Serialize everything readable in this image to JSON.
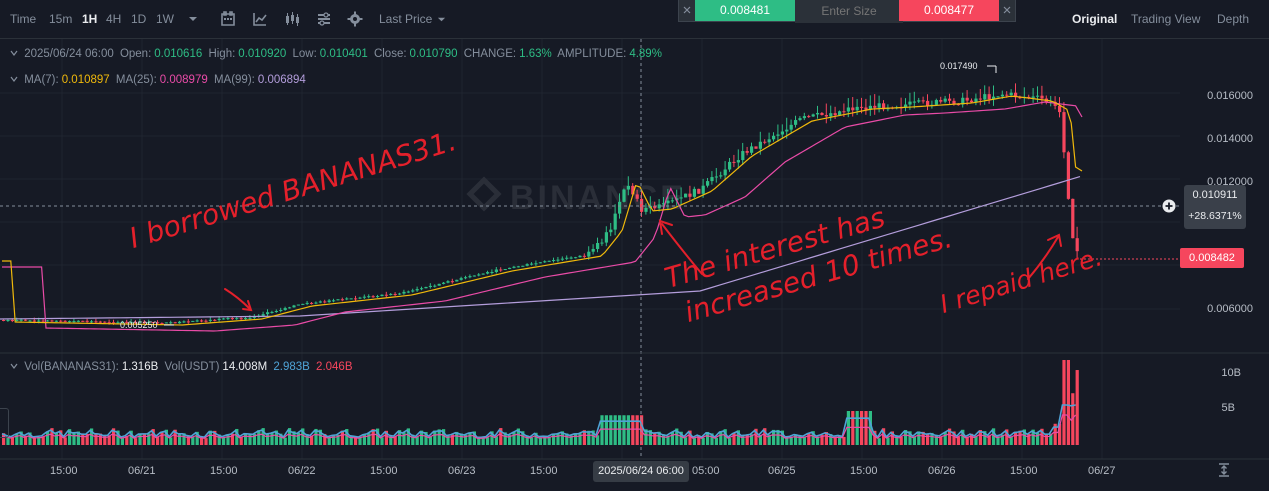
{
  "toolbar": {
    "time_label": "Time",
    "intervals": [
      "15m",
      "1H",
      "4H",
      "1D",
      "1W"
    ],
    "active_interval": "1H",
    "price_type": "Last Price",
    "views": [
      "Original",
      "Trading View",
      "Depth"
    ],
    "active_view": "Original"
  },
  "order_panel": {
    "buy_price": "0.008481",
    "size_placeholder": "Enter Size",
    "sell_price": "0.008477"
  },
  "ohlc": {
    "datetime": "2025/06/24 06:00",
    "open_label": "Open:",
    "open": "0.010616",
    "high_label": "High:",
    "high": "0.010920",
    "low_label": "Low:",
    "low": "0.010401",
    "close_label": "Close:",
    "close": "0.010790",
    "change_label": "CHANGE:",
    "change": "1.63%",
    "amplitude_label": "AMPLITUDE:",
    "amplitude": "4.89%"
  },
  "ma": {
    "ma7_label": "MA(7):",
    "ma7": "0.010897",
    "ma25_label": "MA(25):",
    "ma25": "0.008979",
    "ma99_label": "MA(99):",
    "ma99": "0.006894"
  },
  "volume_legend": {
    "vol_label": "Vol(BANANAS31):",
    "vol": "1.316B",
    "usdt_label": "Vol(USDT)",
    "usdt": "14.008M",
    "ma1": "2.983B",
    "ma2": "2.046B"
  },
  "price_axis": [
    "0.016000",
    "0.014000",
    "0.012000",
    "0.006000"
  ],
  "volume_axis": [
    "10B",
    "5B"
  ],
  "time_axis": [
    "15:00",
    "06/21",
    "15:00",
    "06/22",
    "15:00",
    "06/23",
    "15:00",
    "05:00",
    "06/25",
    "15:00",
    "06/26",
    "15:00",
    "06/27"
  ],
  "crosshair": {
    "price": "0.010911",
    "change": "+28.6371%",
    "date": "2025/06/24 06:00"
  },
  "last_price": "0.008482",
  "high_marker": "0.017490",
  "low_marker": "0.005250",
  "watermark": "BINANCE",
  "annotations": {
    "borrowed": "I borrowed BANANAS31.",
    "interest_line1": "The interest has",
    "interest_line2": "increased 10 times.",
    "repaid": "I repaid here."
  },
  "colors": {
    "up": "#2ebd85",
    "down": "#f6465d",
    "ma7": "#f0b90b",
    "ma25": "#e94ba7",
    "ma99": "#b39ddb",
    "ink": "#e4202b"
  },
  "icons": [
    "chevron-down-icon",
    "calendar-icon",
    "indicator-icon",
    "candle-style-icon",
    "list-icon",
    "gear-icon",
    "plus-icon",
    "fit-axis-icon"
  ]
}
